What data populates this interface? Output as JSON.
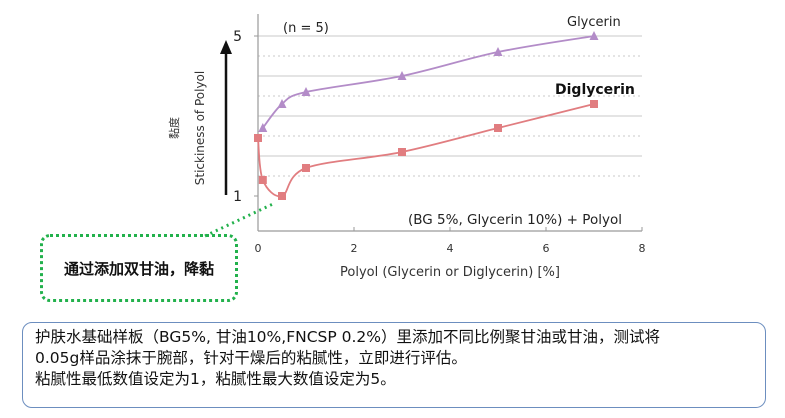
{
  "chart_data": {
    "type": "line",
    "annotation_n": "(n = 5)",
    "formula_note": "(BG 5%, Glycerin 10%) + Polyol",
    "xlabel": "Polyol (Glycerin or Diglycerin) [%]",
    "ylabel": "Stickiness of Polyol",
    "ylabel_cn": "黏度",
    "xlim": [
      0,
      8
    ],
    "ylim": [
      1,
      5
    ],
    "x_ticks": [
      "0",
      "2",
      "4",
      "6",
      "8"
    ],
    "y_ticks": [
      "1",
      "5"
    ],
    "grid": true,
    "series": [
      {
        "name": "Glycerin",
        "color": "#b38cc8",
        "marker": "triangle",
        "x": [
          0.1,
          0.5,
          1,
          3,
          5,
          7
        ],
        "y": [
          2.7,
          3.3,
          3.6,
          4.0,
          4.6,
          5.0
        ]
      },
      {
        "name": "Diglycerin",
        "color": "#e17d80",
        "marker": "square",
        "x": [
          0,
          0.1,
          0.5,
          1,
          3,
          5,
          7
        ],
        "y": [
          2.45,
          1.4,
          1.0,
          1.7,
          2.1,
          2.7,
          3.3
        ]
      }
    ]
  },
  "callout": {
    "text": "通过添加双甘油，降黏"
  },
  "note": {
    "lines": [
      "护肤水基础样板（BG5%, 甘油10%,FNCSP 0.2%）里添加不同比例聚甘油或甘油，测试将",
      "0.05g样品涂抹于腕部，针对干燥后的粘腻性，立即进行评估。",
      "粘腻性最低数值设定为1，粘腻性最大数值设定为5。"
    ]
  },
  "colors": {
    "grid": "#c8c8c8",
    "axis": "#9a9a9a",
    "callout_border": "#22b14c",
    "note_border": "#6c8ebf"
  }
}
